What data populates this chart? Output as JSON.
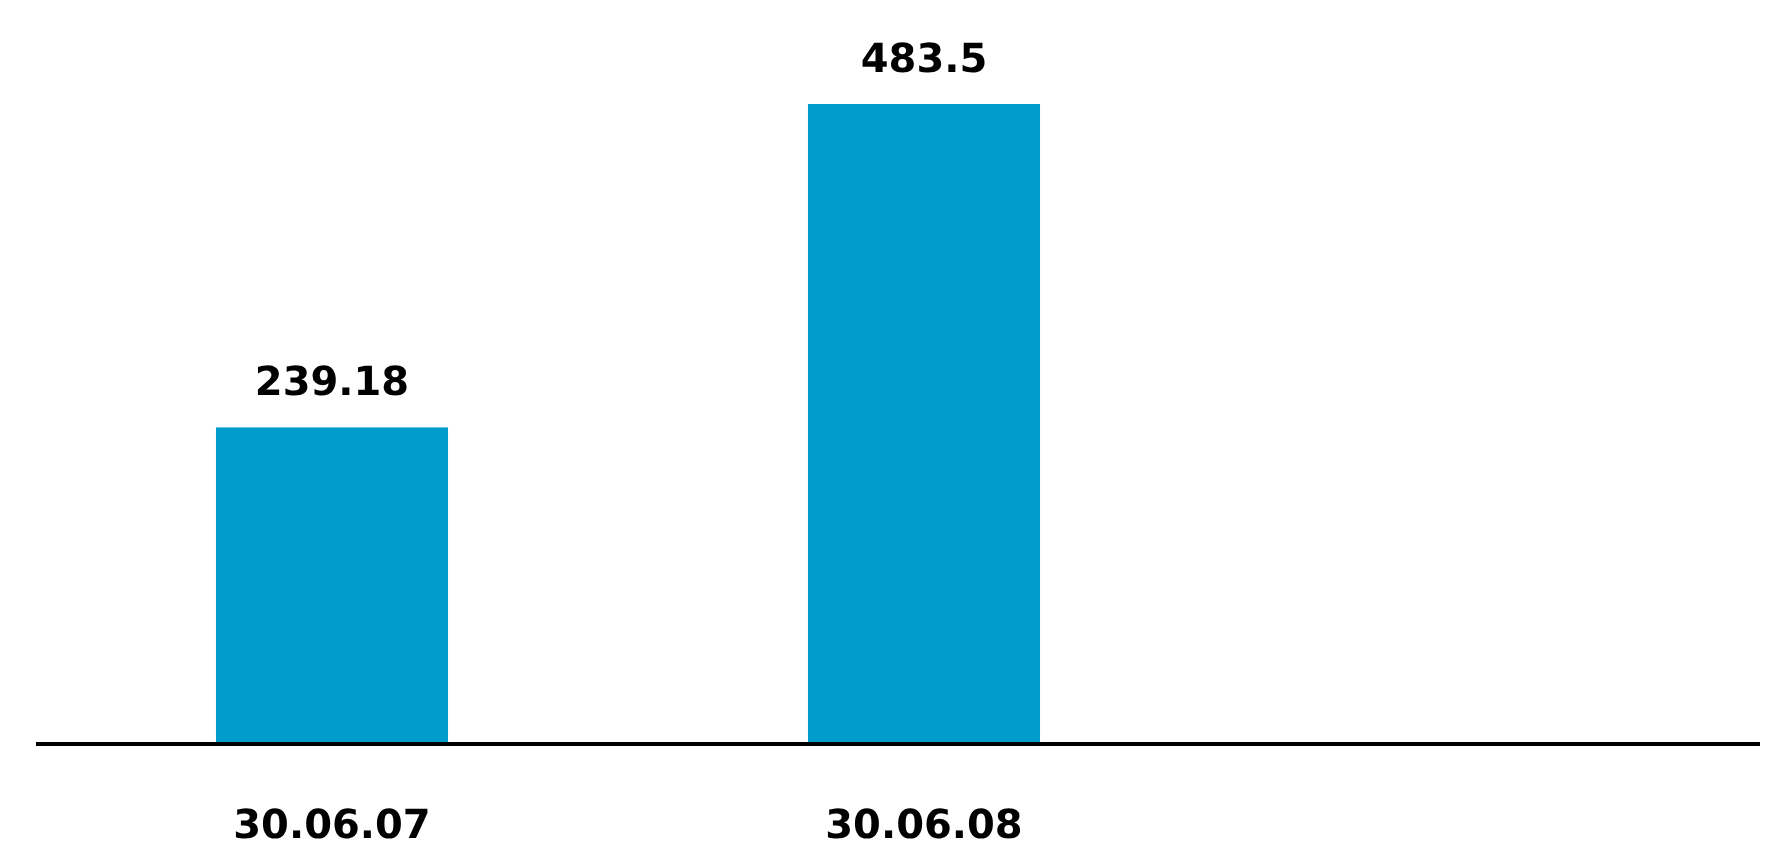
{
  "chart_data": {
    "type": "bar",
    "categories": [
      "30.06.07",
      "30.06.08"
    ],
    "values": [
      239.18,
      483.5
    ],
    "color": "#009ccc",
    "data_labels": true
  }
}
